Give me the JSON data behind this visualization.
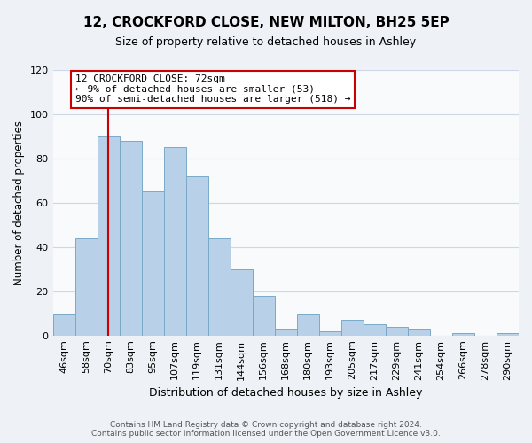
{
  "title1": "12, CROCKFORD CLOSE, NEW MILTON, BH25 5EP",
  "title2": "Size of property relative to detached houses in Ashley",
  "xlabel": "Distribution of detached houses by size in Ashley",
  "ylabel": "Number of detached properties",
  "categories": [
    "46sqm",
    "58sqm",
    "70sqm",
    "83sqm",
    "95sqm",
    "107sqm",
    "119sqm",
    "131sqm",
    "144sqm",
    "156sqm",
    "168sqm",
    "180sqm",
    "193sqm",
    "205sqm",
    "217sqm",
    "229sqm",
    "241sqm",
    "254sqm",
    "266sqm",
    "278sqm",
    "290sqm"
  ],
  "values": [
    10,
    44,
    90,
    88,
    65,
    85,
    72,
    44,
    30,
    18,
    3,
    10,
    2,
    7,
    5,
    4,
    3,
    0,
    1,
    0,
    1
  ],
  "bar_color": "#b8d0e8",
  "bar_edge_color": "#7aaac8",
  "vline_x_idx": 2,
  "vline_color": "#cc0000",
  "ann_line1": "12 CROCKFORD CLOSE: 72sqm",
  "ann_line2": "← 9% of detached houses are smaller (53)",
  "ann_line3": "90% of semi-detached houses are larger (518) →",
  "annotation_box_color": "#ffffff",
  "annotation_box_edge_color": "#cc0000",
  "ylim": [
    0,
    120
  ],
  "yticks": [
    0,
    20,
    40,
    60,
    80,
    100,
    120
  ],
  "footer1": "Contains HM Land Registry data © Crown copyright and database right 2024.",
  "footer2": "Contains public sector information licensed under the Open Government Licence v3.0.",
  "background_color": "#eef2f7",
  "plot_background_color": "#f8fafc",
  "grid_color": "#ccd8e8",
  "title1_fontsize": 11,
  "title2_fontsize": 9,
  "xlabel_fontsize": 9,
  "ylabel_fontsize": 8.5,
  "tick_fontsize": 8,
  "footer_fontsize": 6.5
}
